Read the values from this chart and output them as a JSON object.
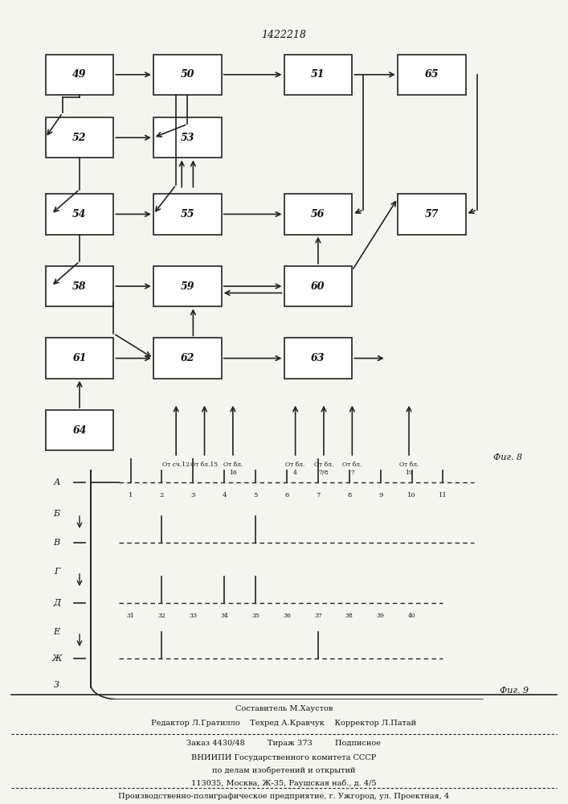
{
  "title": "1422218",
  "fig8_label": "Фиг. 8",
  "fig9_label": "Фиг. 9",
  "blocks": [
    {
      "id": 49,
      "col": 0,
      "row": 0
    },
    {
      "id": 50,
      "col": 1,
      "row": 0
    },
    {
      "id": 51,
      "col": 2,
      "row": 0
    },
    {
      "id": 65,
      "col": 3,
      "row": 0
    },
    {
      "id": 52,
      "col": 0,
      "row": 1
    },
    {
      "id": 53,
      "col": 1,
      "row": 1
    },
    {
      "id": 54,
      "col": 0,
      "row": 2
    },
    {
      "id": 55,
      "col": 1,
      "row": 2
    },
    {
      "id": 56,
      "col": 2,
      "row": 2
    },
    {
      "id": 57,
      "col": 3,
      "row": 2
    },
    {
      "id": 58,
      "col": 0,
      "row": 3
    },
    {
      "id": 59,
      "col": 1,
      "row": 3
    },
    {
      "id": 60,
      "col": 2,
      "row": 3
    },
    {
      "id": 61,
      "col": 0,
      "row": 4
    },
    {
      "id": 62,
      "col": 1,
      "row": 4
    },
    {
      "id": 63,
      "col": 2,
      "row": 4
    },
    {
      "id": 64,
      "col": 0,
      "row": 5
    }
  ],
  "bg_color": "#f5f5f0",
  "box_color": "#ffffff",
  "line_color": "#222222",
  "text_color": "#111111",
  "footer_lines": [
    "Составитель М.Хаустов",
    "Редактор Л.Гратилло    Техред А.Кравчук    Корректор Л.Патай",
    "Заказ 4430/48         Тираж 373         Подписное",
    "ВНИИПИ Государственного комитета СССР",
    "по делам изобретений и открытий",
    "113035, Москва, Ж-35, Раушская наб., д. 4/5",
    "Производственно-полиграфическое предприятие, г. Ужгород, ул. Проектная, 4"
  ]
}
